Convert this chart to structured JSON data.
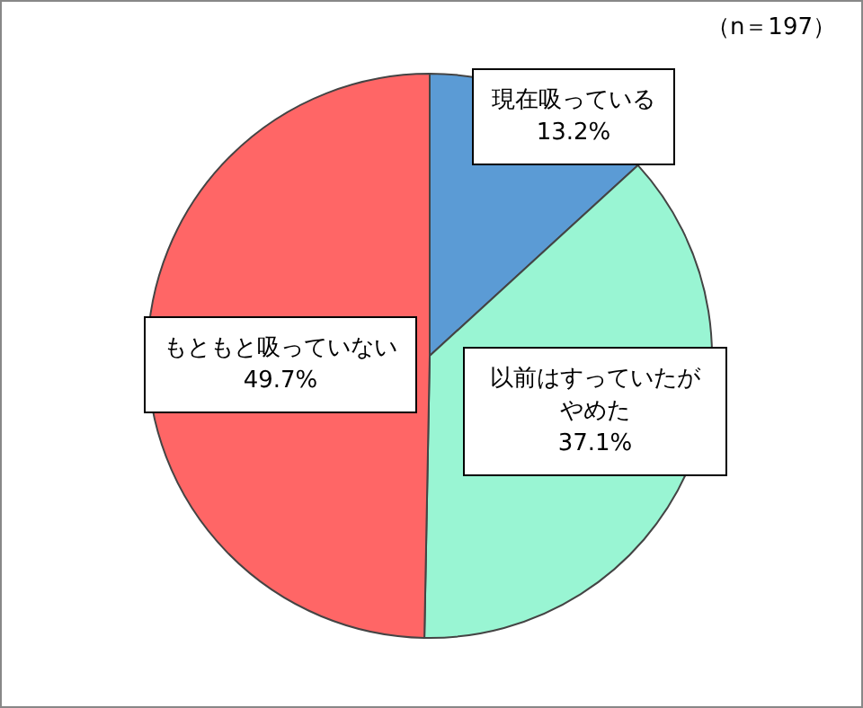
{
  "chart_data": {
    "type": "pie",
    "categories": [
      "現在吸っている",
      "以前はすっていたがやめた",
      "もともと吸っていない"
    ],
    "values": [
      13.2,
      37.1,
      49.7
    ],
    "value_labels": [
      "13.2%",
      "37.1%",
      "49.7%"
    ],
    "colors": [
      "#5b9bd5",
      "#99f5d3",
      "#ff6666"
    ],
    "annotations": [
      "（n＝197）"
    ],
    "legend": false
  }
}
